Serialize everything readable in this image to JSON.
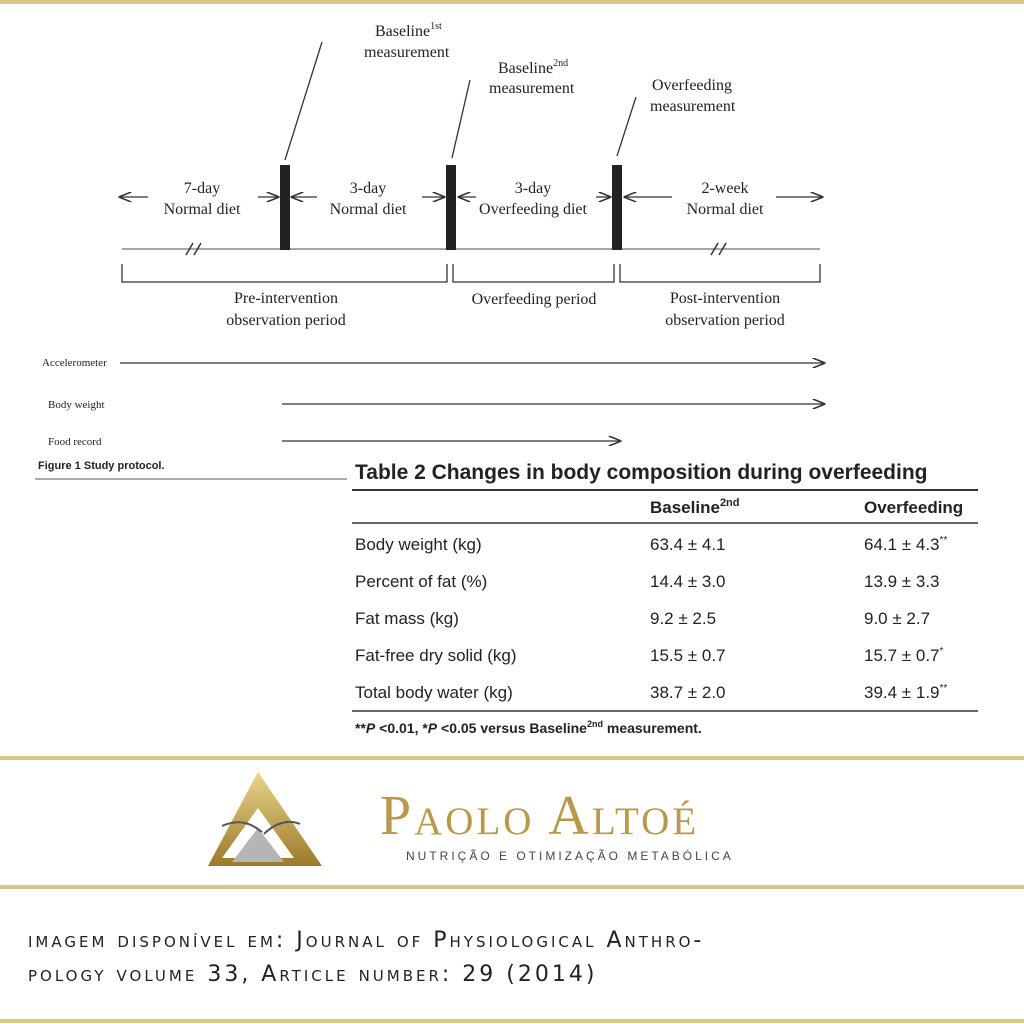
{
  "figure": {
    "measurements": [
      {
        "name": "Baseline",
        "sup": "1st",
        "line2": "measurement"
      },
      {
        "name": "Baseline",
        "sup": "2nd",
        "line2": "measurement"
      },
      {
        "name": "Overfeeding",
        "line2": "measurement"
      }
    ],
    "phases": [
      {
        "line1": "7-day",
        "line2": "Normal diet"
      },
      {
        "line1": "3-day",
        "line2": "Normal diet"
      },
      {
        "line1": "3-day",
        "line2": "Overfeeding diet"
      },
      {
        "line1": "2-week",
        "line2": "Normal diet"
      }
    ],
    "periods": [
      {
        "line1": "Pre-intervention",
        "line2": "observation period"
      },
      {
        "line1": "Overfeeding period"
      },
      {
        "line1": "Post-intervention",
        "line2": "observation period"
      }
    ],
    "tracks": [
      "Accelerometer",
      "Body weight",
      "Food record"
    ],
    "caption": {
      "label": "Figure 1",
      "text": "Study protocol."
    }
  },
  "table": {
    "title": "Table 2 Changes in body composition during overfeeding",
    "columns": [
      {
        "name": "Baseline",
        "sup": "2nd"
      },
      {
        "name": "Overfeeding"
      }
    ],
    "rows": [
      {
        "label": "Body weight (kg)",
        "baseline": "63.4 ± 4.1",
        "overfeeding": "64.1 ± 4.3",
        "mark": "**"
      },
      {
        "label": "Percent of fat (%)",
        "baseline": "14.4 ± 3.0",
        "overfeeding": "13.9 ± 3.3"
      },
      {
        "label": "Fat mass (kg)",
        "baseline": "9.2 ± 2.5",
        "overfeeding": "9.0 ± 2.7"
      },
      {
        "label": "Fat-free dry solid (kg)",
        "baseline": "15.5 ± 0.7",
        "overfeeding": "15.7 ± 0.7",
        "mark": "*"
      },
      {
        "label": "Total body water (kg)",
        "baseline": "38.7 ± 2.0",
        "overfeeding": "39.4 ± 1.9",
        "mark": "**"
      }
    ],
    "footnote": [
      "**",
      "P",
      " <0.01, *",
      "P",
      " <0.05 versus Baseline",
      "2nd",
      " measurement."
    ]
  },
  "brand": {
    "name": "Paolo Altoé",
    "tagline": "nutrição e otimização metabólica"
  },
  "source": [
    "imagem disponível em: Journal of Physiological Anthro-",
    "pology volume 33, Article number: 29 (2014)"
  ]
}
